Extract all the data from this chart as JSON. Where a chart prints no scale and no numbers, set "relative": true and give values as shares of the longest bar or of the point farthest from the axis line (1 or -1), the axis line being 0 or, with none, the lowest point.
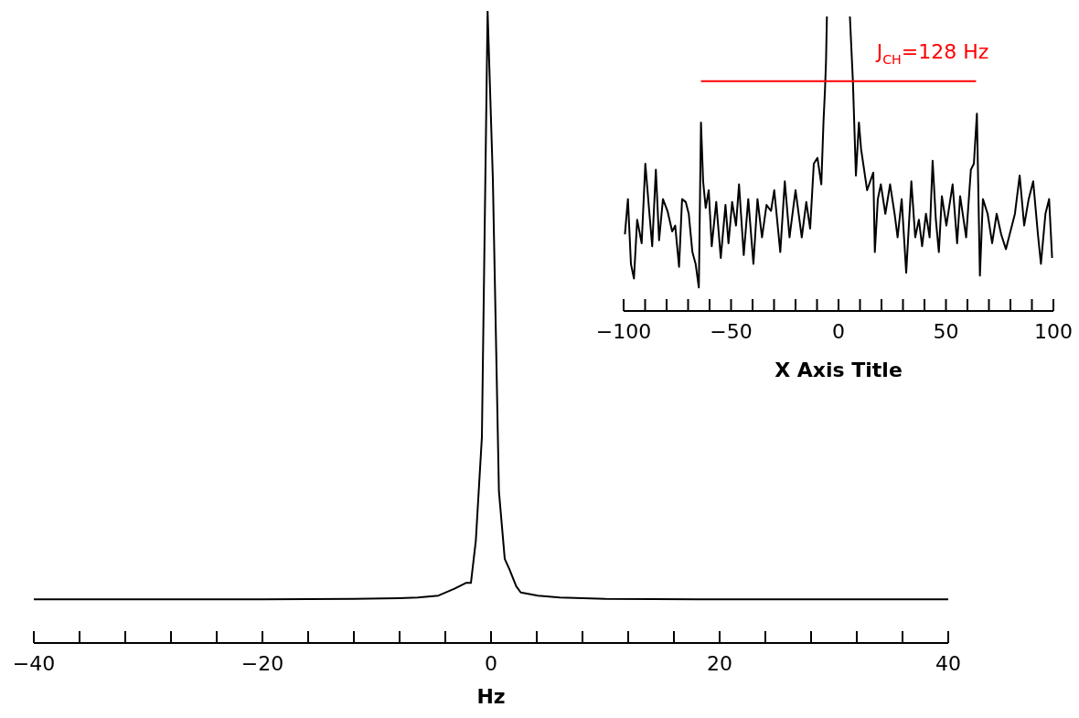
{
  "chart_data": [
    {
      "type": "line",
      "xlabel": "Hz",
      "relative": true,
      "xlim": [
        -40,
        40
      ],
      "xticks": [
        -40,
        {
          "value": -36,
          "label": null
        },
        {
          "value": -32,
          "label": null
        },
        {
          "value": -28,
          "label": null
        },
        {
          "value": -24,
          "label": null
        },
        -20,
        {
          "value": -16,
          "label": null
        },
        {
          "value": -12,
          "label": null
        },
        {
          "value": -8,
          "label": null
        },
        {
          "value": -4,
          "label": null
        },
        0,
        {
          "value": 4,
          "label": null
        },
        {
          "value": 8,
          "label": null
        },
        {
          "value": 12,
          "label": null
        },
        {
          "value": 16,
          "label": null
        },
        20,
        {
          "value": 24,
          "label": null
        },
        {
          "value": 28,
          "label": null
        },
        {
          "value": 32,
          "label": null
        },
        {
          "value": 36,
          "label": null
        },
        40
      ],
      "series": [
        {
          "color": "#000000",
          "x": [
            -40,
            -30,
            -20,
            -12,
            -8,
            -6.4,
            -4.6,
            -3.2,
            -2.2,
            -1.76,
            -1.33,
            -0.8,
            -0.3,
            0.16,
            0.69,
            1.2,
            1.6,
            2.2,
            2.6,
            4.1,
            6,
            10,
            20,
            30,
            40
          ],
          "values": [
            0.069,
            0.069,
            0.069,
            0.07,
            0.071,
            0.072,
            0.075,
            0.086,
            0.095,
            0.095,
            0.162,
            0.326,
            1,
            0.734,
            0.24,
            0.133,
            0.117,
            0.09,
            0.08,
            0.075,
            0.072,
            0.07,
            0.069,
            0.069,
            0.069
          ]
        }
      ]
    },
    {
      "type": "line",
      "xlabel": "X Axis Title",
      "relative": true,
      "xlim": [
        -100,
        100
      ],
      "xticks": [
        -100,
        {
          "value": -90,
          "label": null
        },
        {
          "value": -80,
          "label": null
        },
        {
          "value": -70,
          "label": null
        },
        {
          "value": -60,
          "label": null
        },
        -50,
        {
          "value": -40,
          "label": null
        },
        {
          "value": -30,
          "label": null
        },
        {
          "value": -20,
          "label": null
        },
        {
          "value": -10,
          "label": null
        },
        0,
        {
          "value": 10,
          "label": null
        },
        {
          "value": 20,
          "label": null
        },
        {
          "value": 30,
          "label": null
        },
        {
          "value": 40,
          "label": null
        },
        50,
        {
          "value": 60,
          "label": null
        },
        {
          "value": 70,
          "label": null
        },
        {
          "value": 80,
          "label": null
        },
        {
          "value": 90,
          "label": null
        },
        100
      ],
      "annotations": [
        "J$_{CH}$=128 Hz"
      ],
      "series": [
        {
          "color": "#000000",
          "x": [
            -99.4,
            -98,
            -96.6,
            -95.2,
            -93.7,
            -91.6,
            -89.9,
            -88.1,
            -86.7,
            -85,
            -83.5,
            -81.7,
            -79.6,
            -77.4,
            -76,
            -74.2,
            -72.8,
            -71.1,
            -69.7,
            -68,
            -66.5,
            -65,
            -64,
            -63,
            -61.8,
            -60.4,
            -59,
            -56.9,
            -54.8,
            -52.6,
            -51.2,
            -49.5,
            -47.7,
            -46.3,
            -44.1,
            -42,
            -39.6,
            -37.7,
            -35.6,
            -33.5,
            -31.4,
            -29.9,
            -27.1,
            -25,
            -22.8,
            -20,
            -17.1,
            -15,
            -13.2,
            -11.5,
            -9.8,
            -8,
            -7,
            -6.3,
            -5.8,
            -5.4,
            0,
            5.3,
            6.7,
            8.1,
            9.5,
            10.5,
            13.3,
            16.2,
            16.9,
            18.3,
            19.7,
            21.8,
            24,
            26.1,
            27.5,
            29.4,
            31.5,
            33.9,
            35.7,
            37.4,
            38.9,
            40.7,
            42.4,
            43.8,
            45.3,
            46.7,
            48.1,
            50.2,
            53.1,
            55.2,
            56.6,
            59.4,
            61.6,
            63,
            64.4,
            65.8,
            67.2,
            69.4,
            71.5,
            73.6,
            75.7,
            77.9,
            80,
            82.1,
            84.3,
            86.4,
            88.5,
            90.6,
            92.8,
            94.2,
            96.3,
            98,
            99.4
          ],
          "values": [
            0.26,
            0.38,
            0.16,
            0.11,
            0.31,
            0.23,
            0.5,
            0.34,
            0.22,
            0.48,
            0.24,
            0.38,
            0.34,
            0.27,
            0.29,
            0.15,
            0.38,
            0.37,
            0.33,
            0.2,
            0.16,
            0.08,
            0.64,
            0.44,
            0.35,
            0.41,
            0.22,
            0.37,
            0.18,
            0.36,
            0.23,
            0.37,
            0.29,
            0.43,
            0.19,
            0.38,
            0.16,
            0.38,
            0.25,
            0.36,
            0.34,
            0.41,
            0.2,
            0.44,
            0.25,
            0.41,
            0.25,
            0.37,
            0.28,
            0.5,
            0.52,
            0.43,
            0.64,
            0.75,
            0.85,
            1,
            null,
            1,
            0.78,
            0.46,
            0.64,
            0.55,
            0.41,
            0.47,
            0.2,
            0.38,
            0.43,
            0.33,
            0.43,
            0.33,
            0.25,
            0.38,
            0.13,
            0.44,
            0.25,
            0.31,
            0.22,
            0.33,
            0.25,
            0.51,
            0.31,
            0.2,
            0.39,
            0.29,
            0.43,
            0.23,
            0.39,
            0.25,
            0.48,
            0.5,
            0.67,
            0.12,
            0.38,
            0.33,
            0.23,
            0.33,
            0.26,
            0.21,
            0.27,
            0.33,
            0.46,
            0.29,
            0.38,
            0.44,
            0.26,
            0.16,
            0.33,
            0.38,
            0.18
          ]
        },
        {
          "type": "line",
          "color": "#ff0000",
          "x": [
            -64,
            64
          ],
          "values": [
            0.78,
            0.78
          ]
        }
      ]
    }
  ]
}
